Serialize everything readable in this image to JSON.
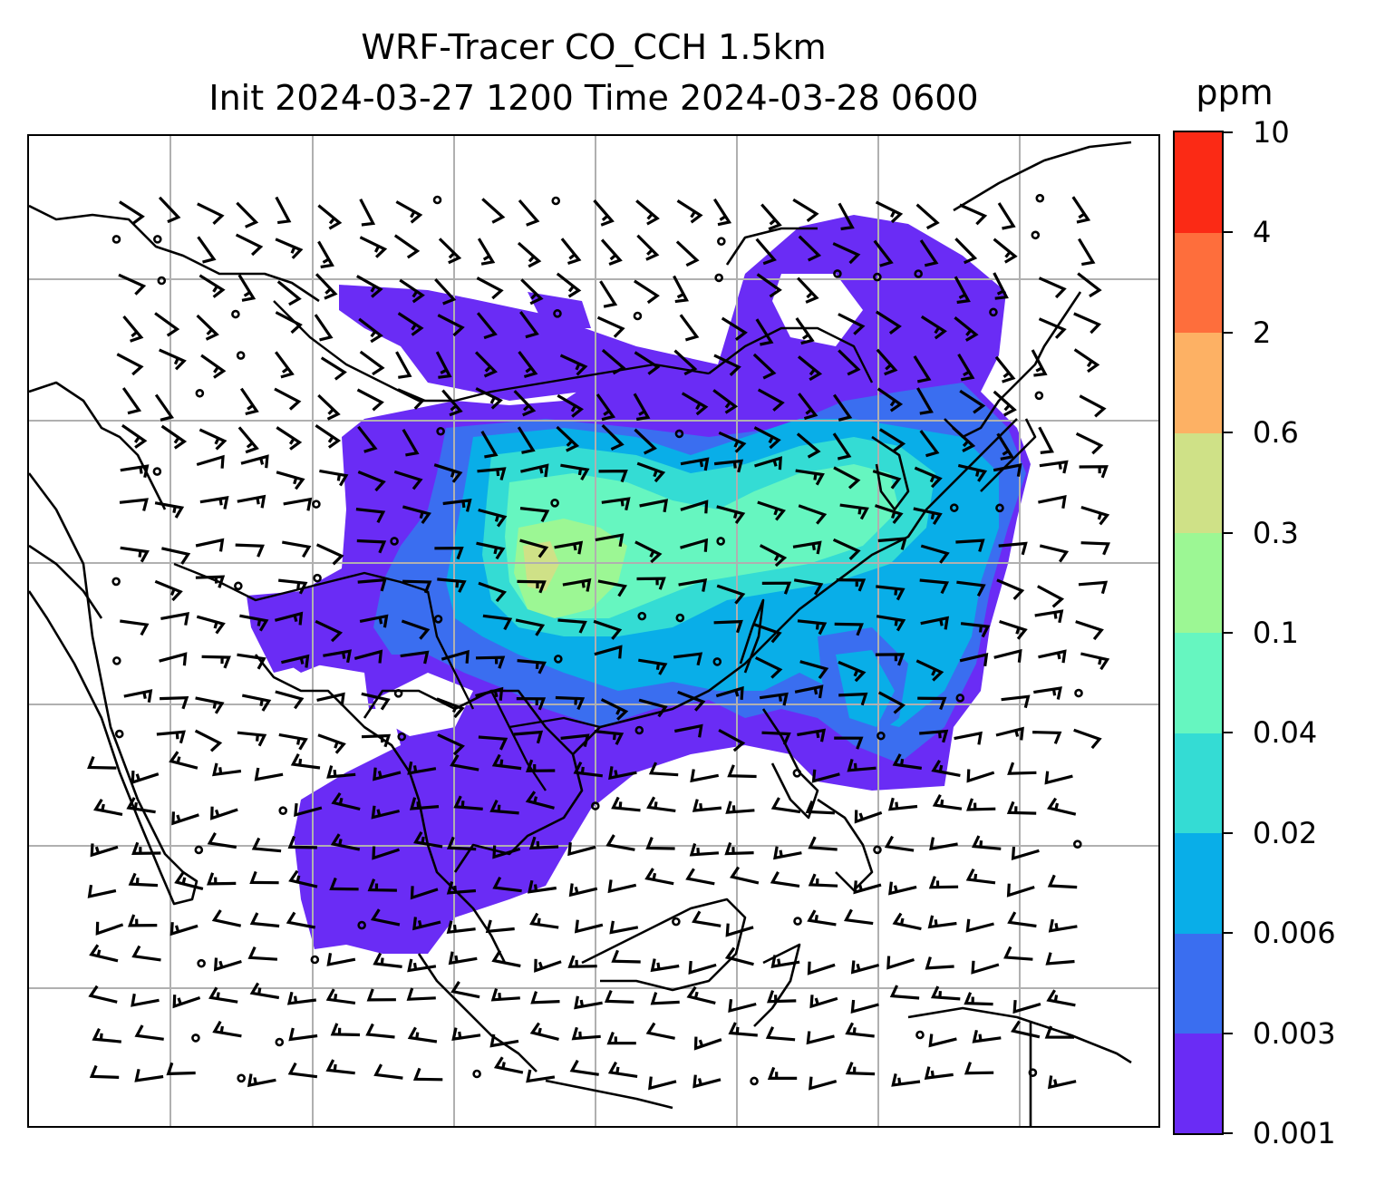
{
  "title": {
    "line1": "WRF-Tracer CO_CCH 1.5km",
    "line2": "Init 2024-03-27 1200 Time 2024-03-28 0600"
  },
  "colorbar": {
    "unit": "ppm",
    "levels": [
      "0.001",
      "0.003",
      "0.006",
      "0.02",
      "0.04",
      "0.1",
      "0.3",
      "0.6",
      "2",
      "4",
      "10"
    ],
    "colors": [
      "#6a2cf5",
      "#3a6ef0",
      "#09aee8",
      "#34dcd4",
      "#66f6c0",
      "#9cf794",
      "#cfe187",
      "#fdb164",
      "#fe6e3c",
      "#fb2a15"
    ]
  },
  "map": {
    "gridlines": "on",
    "features": [
      "coastlines",
      "country-borders",
      "wind-barbs",
      "co-tracer-shading"
    ]
  }
}
